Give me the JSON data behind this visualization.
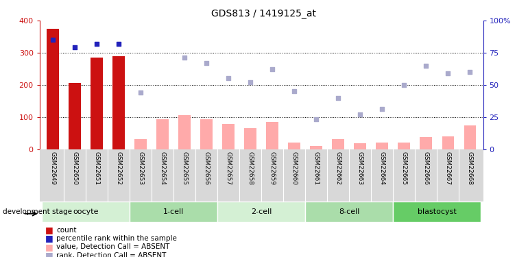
{
  "title": "GDS813 / 1419125_at",
  "samples": [
    "GSM22649",
    "GSM22650",
    "GSM22651",
    "GSM22652",
    "GSM22653",
    "GSM22654",
    "GSM22655",
    "GSM22656",
    "GSM22657",
    "GSM22658",
    "GSM22659",
    "GSM22660",
    "GSM22661",
    "GSM22662",
    "GSM22663",
    "GSM22664",
    "GSM22665",
    "GSM22666",
    "GSM22667",
    "GSM22668"
  ],
  "count_values": [
    375,
    205,
    285,
    290,
    null,
    null,
    null,
    null,
    null,
    null,
    null,
    null,
    null,
    null,
    null,
    null,
    null,
    null,
    null,
    null
  ],
  "rank_pct": [
    85,
    79,
    82,
    82,
    null,
    null,
    null,
    null,
    null,
    null,
    null,
    null,
    null,
    null,
    null,
    null,
    null,
    null,
    null,
    null
  ],
  "absent_value": [
    null,
    null,
    null,
    null,
    32,
    93,
    105,
    93,
    78,
    65,
    85,
    20,
    10,
    30,
    18,
    20,
    20,
    38,
    40,
    73
  ],
  "absent_rank_pct": [
    null,
    null,
    null,
    null,
    44,
    null,
    71,
    67,
    55,
    52,
    62,
    45,
    23,
    40,
    27,
    31,
    50,
    65,
    59,
    60
  ],
  "stages": [
    {
      "label": "oocyte",
      "start": 0,
      "end": 3
    },
    {
      "label": "1-cell",
      "start": 4,
      "end": 7
    },
    {
      "label": "2-cell",
      "start": 8,
      "end": 11
    },
    {
      "label": "8-cell",
      "start": 12,
      "end": 15
    },
    {
      "label": "blastocyst",
      "start": 16,
      "end": 19
    }
  ],
  "stage_colors": [
    "#d4f0d4",
    "#aaddaa",
    "#d4f0d4",
    "#aaddaa",
    "#66cc66"
  ],
  "ylim_left": [
    0,
    400
  ],
  "ylim_right": [
    0,
    100
  ],
  "yticks_left": [
    0,
    100,
    200,
    300,
    400
  ],
  "yticks_right": [
    0,
    25,
    50,
    75,
    100
  ],
  "color_count": "#cc1111",
  "color_rank": "#2222bb",
  "color_absent_value": "#ffaaaa",
  "color_absent_rank": "#aaaacc",
  "legend_items": [
    {
      "color": "#cc1111",
      "label": "count"
    },
    {
      "color": "#2222bb",
      "label": "percentile rank within the sample"
    },
    {
      "color": "#ffaaaa",
      "label": "value, Detection Call = ABSENT"
    },
    {
      "color": "#aaaacc",
      "label": "rank, Detection Call = ABSENT"
    }
  ]
}
